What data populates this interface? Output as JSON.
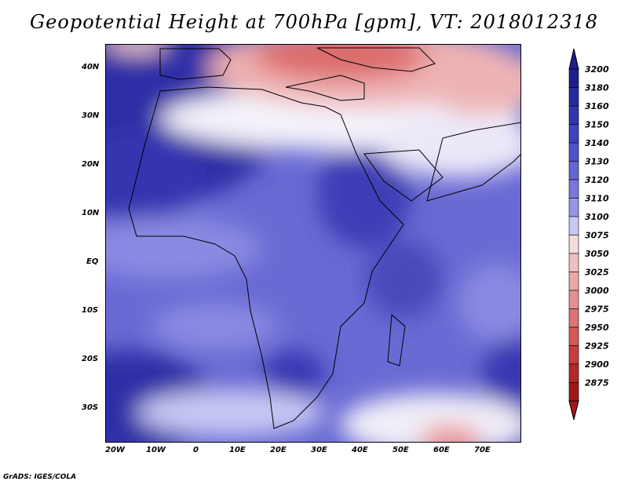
{
  "title": "Geopotential Height at 700hPa [gpm], VT: 2018012318",
  "footer": "GrADS: IGES/COLA",
  "lat_labels": [
    "40N",
    "30N",
    "20N",
    "10N",
    "EQ",
    "10S",
    "20S",
    "30S"
  ],
  "lon_labels": [
    "20W",
    "10W",
    "0",
    "10E",
    "20E",
    "30E",
    "40E",
    "50E",
    "60E",
    "70E"
  ],
  "colorbar": {
    "levels": [
      "3200",
      "3180",
      "3160",
      "3150",
      "3140",
      "3130",
      "3120",
      "3110",
      "3100",
      "3075",
      "3050",
      "3025",
      "3000",
      "2975",
      "2950",
      "2925",
      "2900",
      "2875"
    ],
    "colors": [
      "#1e1e8c",
      "#2a2aa0",
      "#3333b0",
      "#4040c0",
      "#5050c8",
      "#6464d2",
      "#7878dc",
      "#9696e6",
      "#c8c8f4",
      "#f4dcdc",
      "#f0c0c0",
      "#eaa8a8",
      "#e49090",
      "#dc7474",
      "#d45858",
      "#c83c3c",
      "#b42828",
      "#a01818"
    ]
  },
  "colors": {
    "deep_blue": "#2a2aa0",
    "mid_blue": "#6464d2",
    "light_blue": "#9696e6",
    "pale": "#e6e6fa",
    "pink": "#f0c0c0",
    "red": "#d45858"
  }
}
